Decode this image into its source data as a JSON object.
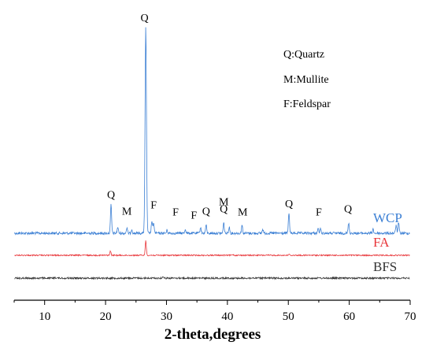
{
  "chart_data": {
    "type": "line",
    "xlabel": "2-theta,degrees",
    "ylabel": "",
    "xlim": [
      5,
      70
    ],
    "xticks": [
      "10",
      "20",
      "30",
      "40",
      "50",
      "60",
      "70"
    ],
    "grid": false,
    "legend_note": [
      "Q:Quartz",
      "M:Mullite",
      "F:Feldspar"
    ],
    "series": [
      {
        "name": "WCP",
        "color": "#3b7fd4",
        "baseline": 0.0,
        "peaks": [
          {
            "x": 20.9,
            "y": 0.14
          },
          {
            "x": 22.0,
            "y": 0.03
          },
          {
            "x": 23.5,
            "y": 0.025
          },
          {
            "x": 24.3,
            "y": 0.02
          },
          {
            "x": 26.6,
            "y": 1.0
          },
          {
            "x": 27.6,
            "y": 0.06
          },
          {
            "x": 27.9,
            "y": 0.05
          },
          {
            "x": 30.1,
            "y": 0.015
          },
          {
            "x": 33.1,
            "y": 0.02
          },
          {
            "x": 35.6,
            "y": 0.03
          },
          {
            "x": 36.5,
            "y": 0.04
          },
          {
            "x": 39.4,
            "y": 0.05
          },
          {
            "x": 40.3,
            "y": 0.03
          },
          {
            "x": 42.4,
            "y": 0.04
          },
          {
            "x": 45.8,
            "y": 0.02
          },
          {
            "x": 50.1,
            "y": 0.1
          },
          {
            "x": 54.9,
            "y": 0.025
          },
          {
            "x": 55.3,
            "y": 0.02
          },
          {
            "x": 59.9,
            "y": 0.05
          },
          {
            "x": 63.9,
            "y": 0.02
          },
          {
            "x": 67.7,
            "y": 0.04
          },
          {
            "x": 68.1,
            "y": 0.05
          }
        ]
      },
      {
        "name": "FA",
        "color": "#e8363a",
        "peaks": [
          {
            "x": 20.8,
            "y": 0.02
          },
          {
            "x": 26.6,
            "y": 0.07
          },
          {
            "x": 40.9,
            "y": 0.005
          },
          {
            "x": 50.1,
            "y": 0.005
          }
        ]
      },
      {
        "name": "BFS",
        "color": "#333333",
        "peaks": [
          {
            "x": 29.5,
            "y": 0.008
          },
          {
            "x": 11.7,
            "y": 0.004
          }
        ]
      }
    ],
    "annotations": [
      {
        "text": "Q",
        "x": 26.4,
        "level": 1.0
      },
      {
        "text": "Q",
        "x": 20.9,
        "level": 0.14
      },
      {
        "text": "M",
        "x": 23.5,
        "level": 0.06
      },
      {
        "text": "F",
        "x": 27.9,
        "level": 0.09
      },
      {
        "text": "F",
        "x": 31.5,
        "level": 0.055
      },
      {
        "text": "F",
        "x": 34.5,
        "level": 0.04
      },
      {
        "text": "Q",
        "x": 36.5,
        "level": 0.06
      },
      {
        "text": "M",
        "x": 39.4,
        "level": 0.105
      },
      {
        "text": "Q",
        "x": 39.4,
        "level": 0.07
      },
      {
        "text": "M",
        "x": 42.5,
        "level": 0.055
      },
      {
        "text": "Q",
        "x": 50.1,
        "level": 0.095
      },
      {
        "text": "F",
        "x": 55.0,
        "level": 0.055
      },
      {
        "text": "Q",
        "x": 59.8,
        "level": 0.07
      }
    ]
  }
}
